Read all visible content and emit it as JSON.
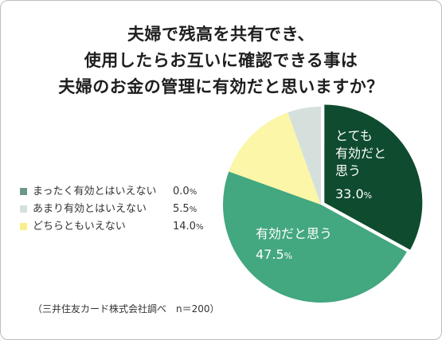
{
  "title_lines": [
    "夫婦で残高を共有でき、",
    "使用したらお互いに確認できる事は",
    "夫婦のお金の管理に有効だと思いますか？"
  ],
  "source": "（三井住友カード株式会社調べ　n＝200）",
  "unit": "%",
  "chart_data": {
    "type": "pie",
    "title": "夫婦で残高を共有でき、使用したらお互いに確認できる事は夫婦のお金の管理に有効だと思いますか？",
    "start": "12 o'clock",
    "direction": "clockwise",
    "legend_position": "left",
    "slices": [
      {
        "label": "とても有効だと思う",
        "label_lines": [
          "とても",
          "有効だと",
          "思う"
        ],
        "value": 33.0,
        "display": "33.0",
        "color": "#0f4b2e",
        "in_legend": false
      },
      {
        "label": "有効だと思う",
        "label_lines": [
          "有効だと思う"
        ],
        "value": 47.5,
        "display": "47.5",
        "color": "#43a77f",
        "in_legend": false
      },
      {
        "label": "どちらともいえない",
        "value": 14.0,
        "display": "14.0",
        "color": "#fbf6a8",
        "in_legend": true
      },
      {
        "label": "あまり有効とはいえない",
        "value": 5.5,
        "display": "5.5",
        "color": "#d5e0dc",
        "in_legend": true
      },
      {
        "label": "まったく有効とはいえない",
        "value": 0.0,
        "display": "0.0",
        "color": "#6a9a86",
        "in_legend": true
      }
    ],
    "legend_order": [
      4,
      3,
      2
    ]
  }
}
